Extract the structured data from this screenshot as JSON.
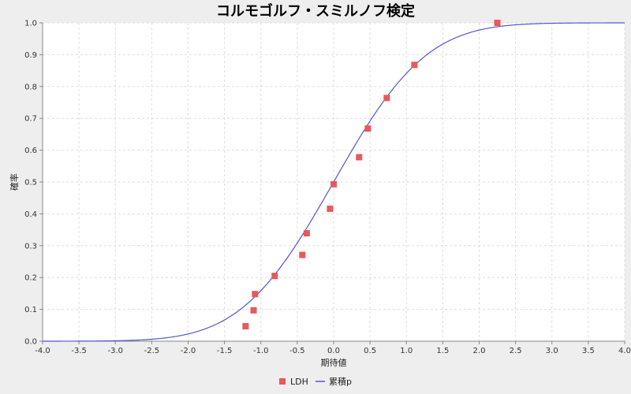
{
  "chart_data": {
    "type": "scatter",
    "title": "コルモゴルフ・スミルノフ検定",
    "xlabel": "期待値",
    "ylabel": "確率",
    "xlim": [
      -4.0,
      4.0
    ],
    "ylim": [
      0.0,
      1.0
    ],
    "x_ticks": [
      "-4.0",
      "-3.5",
      "-3.0",
      "-2.5",
      "-2.0",
      "-1.5",
      "-1.0",
      "-0.5",
      "0.0",
      "0.5",
      "1.0",
      "1.5",
      "2.0",
      "2.5",
      "3.0",
      "3.5",
      "4.0"
    ],
    "y_ticks": [
      "0.0",
      "0.1",
      "0.2",
      "0.3",
      "0.4",
      "0.5",
      "0.6",
      "0.7",
      "0.8",
      "0.9",
      "1.0"
    ],
    "grid": true,
    "legend_position": "bottom",
    "series": [
      {
        "name": "LDH",
        "kind": "scatter",
        "color": "#e8585c",
        "points": [
          {
            "x": -1.21,
            "y": 0.047
          },
          {
            "x": -1.1,
            "y": 0.097
          },
          {
            "x": -1.08,
            "y": 0.148
          },
          {
            "x": -0.81,
            "y": 0.205
          },
          {
            "x": -0.43,
            "y": 0.271
          },
          {
            "x": -0.37,
            "y": 0.339
          },
          {
            "x": -0.05,
            "y": 0.416
          },
          {
            "x": 0.0,
            "y": 0.493
          },
          {
            "x": 0.35,
            "y": 0.578
          },
          {
            "x": 0.47,
            "y": 0.668
          },
          {
            "x": 0.73,
            "y": 0.764
          },
          {
            "x": 1.11,
            "y": 0.868
          },
          {
            "x": 2.25,
            "y": 1.0
          }
        ]
      },
      {
        "name": "累積p",
        "kind": "line",
        "color": "#5555cc",
        "function": "standard normal CDF"
      }
    ]
  }
}
